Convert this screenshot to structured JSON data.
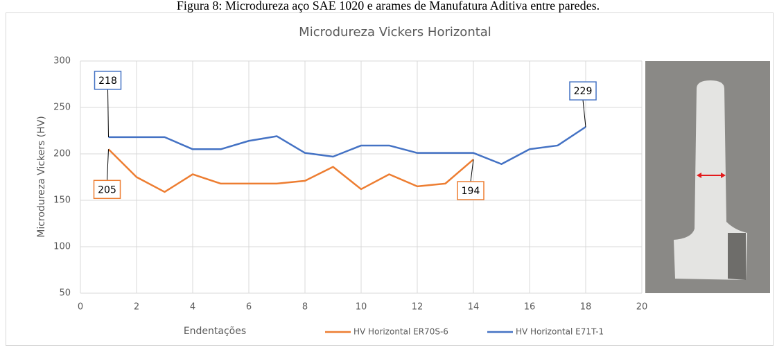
{
  "caption": "Figura 8: Microdureza aço SAE 1020 e arames de Manufatura Aditiva entre paredes.",
  "chart_data": {
    "type": "line",
    "title": "Microdureza Vickers Horizontal",
    "x_label": "Endentações",
    "y_label": "Microdureza Vickers (HV)",
    "xlim": [
      0,
      20
    ],
    "xticks": [
      0,
      2,
      4,
      6,
      8,
      10,
      12,
      14,
      16,
      18,
      20
    ],
    "ylim": [
      50,
      300
    ],
    "yticks": [
      50,
      100,
      150,
      200,
      250,
      300
    ],
    "grid": true,
    "legend": "bottom",
    "series": [
      {
        "name": "HV Horizontal ER70S-6",
        "color": "#ed7d31",
        "x": [
          1,
          2,
          3,
          4,
          5,
          6,
          7,
          8,
          9,
          10,
          11,
          12,
          13,
          14
        ],
        "values": [
          205,
          175,
          159,
          178,
          168,
          168,
          168,
          171,
          186,
          162,
          178,
          165,
          168,
          194
        ],
        "value_labels": [
          "205",
          null,
          null,
          null,
          null,
          null,
          null,
          null,
          null,
          null,
          null,
          null,
          null,
          "194"
        ]
      },
      {
        "name": "HV Horizontal E71T-1",
        "color": "#4472c4",
        "x": [
          1,
          2,
          3,
          4,
          5,
          6,
          7,
          8,
          9,
          10,
          11,
          12,
          13,
          14,
          15,
          16,
          17,
          18
        ],
        "values": [
          218,
          218,
          218,
          205,
          205,
          214,
          219,
          201,
          197,
          209,
          209,
          201,
          201,
          201,
          189,
          205,
          209,
          229
        ],
        "value_labels": [
          "218",
          null,
          null,
          null,
          null,
          null,
          null,
          null,
          null,
          null,
          null,
          null,
          null,
          null,
          null,
          null,
          null,
          "229"
        ]
      }
    ]
  }
}
